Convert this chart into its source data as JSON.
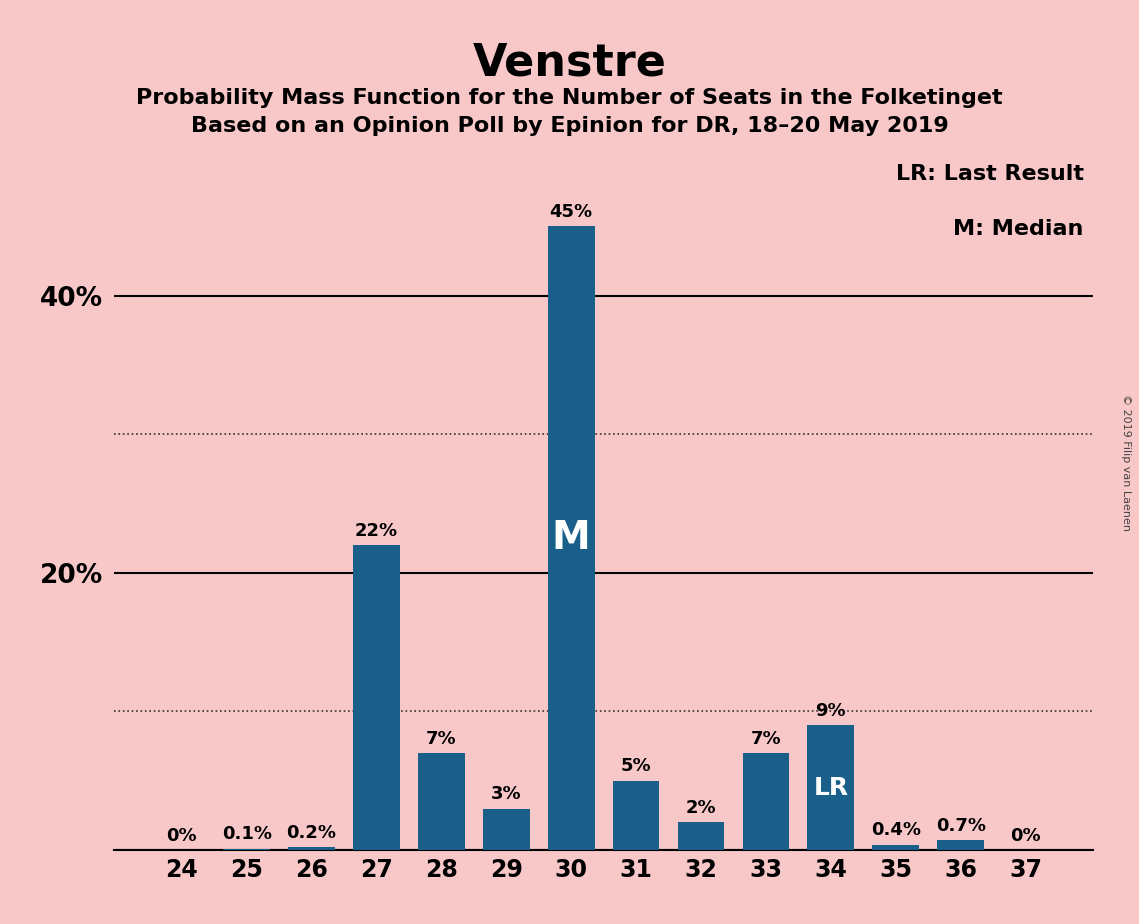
{
  "title": "Venstre",
  "subtitle1": "Probability Mass Function for the Number of Seats in the Folketinget",
  "subtitle2": "Based on an Opinion Poll by Epinion for DR, 18–20 May 2019",
  "categories": [
    24,
    25,
    26,
    27,
    28,
    29,
    30,
    31,
    32,
    33,
    34,
    35,
    36,
    37
  ],
  "values": [
    0.0,
    0.1,
    0.2,
    22.0,
    7.0,
    3.0,
    45.0,
    5.0,
    2.0,
    7.0,
    9.0,
    0.4,
    0.7,
    0.0
  ],
  "labels": [
    "0%",
    "0.1%",
    "0.2%",
    "22%",
    "7%",
    "3%",
    "45%",
    "5%",
    "2%",
    "7%",
    "9%",
    "0.4%",
    "0.7%",
    "0%"
  ],
  "bar_color": "#1a5f8a",
  "background_color": "#f8c8c8",
  "ylim": [
    0,
    50
  ],
  "solid_yticks": [
    0,
    20,
    40
  ],
  "dotted_yticks": [
    10,
    30
  ],
  "ytick_labeled": {
    "20": "20%",
    "40": "40%"
  },
  "median_seat": 30,
  "lr_seat": 34,
  "legend_text1": "LR: Last Result",
  "legend_text2": "M: Median",
  "watermark": "© 2019 Filip van Laenen",
  "title_fontsize": 32,
  "subtitle_fontsize": 16,
  "label_fontsize": 13,
  "axis_fontsize": 17,
  "ytick_fontsize": 19
}
